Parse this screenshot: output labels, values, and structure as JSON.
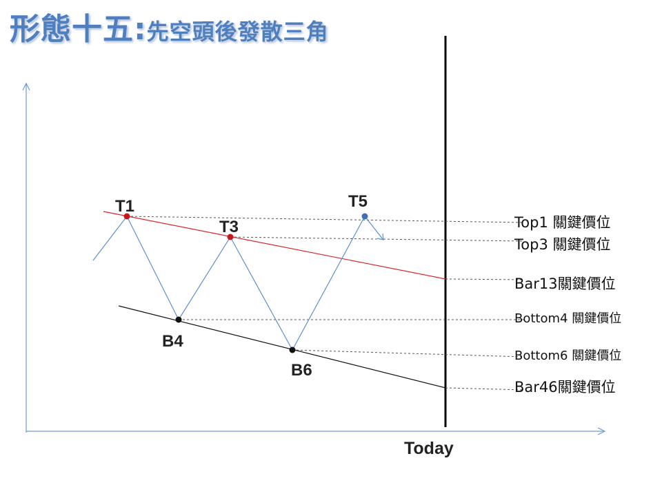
{
  "title": {
    "main": "形態十五:",
    "sub": "先空頭後發散三角"
  },
  "points": {
    "T1": "T1",
    "T3": "T3",
    "T5": "T5",
    "B4": "B4",
    "B6": "B6"
  },
  "axis": {
    "today": "Today"
  },
  "levels": [
    "Top1  關鍵價位",
    "Top3  關鍵價位",
    "Bar13關鍵價位",
    "Bottom4 關鍵價位",
    "Bottom6 關鍵價位",
    "Bar46關鍵價位"
  ],
  "colors": {
    "price_line": "#5b8fd1",
    "upper_trend": "#d9262b",
    "lower_trend": "#111111",
    "red_points": "#c0181c",
    "black_points": "#111111",
    "blue_point": "#3f6fb0",
    "axis": "#6d9bd2",
    "guide": "#555555",
    "title": "#4f7fbf"
  }
}
